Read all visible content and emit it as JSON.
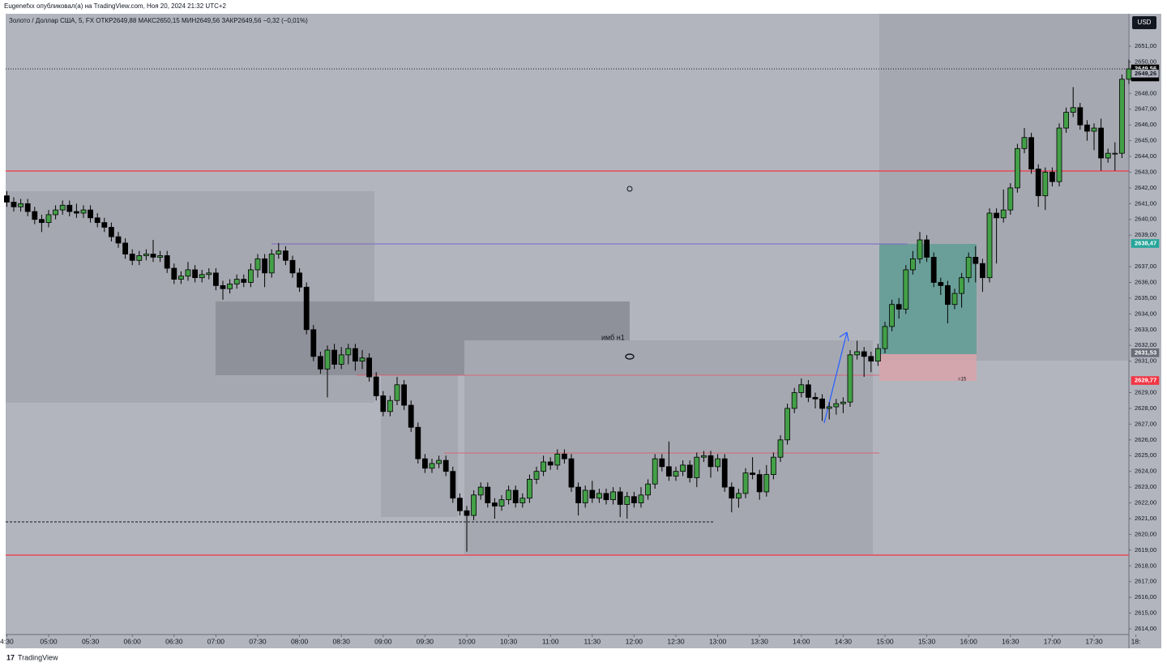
{
  "header": "Eugenefxx опубликовал(а) на TradingView.com, Ноя 20, 2024 21:32 UTC+2",
  "footer": "TradingView",
  "chart_data": {
    "type": "candlestick",
    "title": "Золото / Доллар США, 5, FX  ОТКР2649,88  МАКС2650,15  МИН2649,56  ЗАКР2649,56  −0,32 (−0,01%)",
    "currency": "USD",
    "annotations": [
      "имб н1",
      "=15"
    ],
    "countdown": "02:07",
    "up_color": "#43a047",
    "down_color": "#000000",
    "ylim": [
      2651.0,
      2614.0
    ],
    "open": [
      2641.5,
      2641.1,
      2640.8,
      2641.0,
      2640.5,
      2640.0,
      2639.8,
      2640.3,
      2640.6,
      2640.9,
      2640.5,
      2640.4,
      2640.6,
      2640.1,
      2639.8,
      2639.5,
      2638.9,
      2638.5,
      2637.8,
      2637.4,
      2637.7,
      2637.8,
      2637.6,
      2637.7,
      2636.9,
      2636.2,
      2636.4,
      2636.8,
      2636.3,
      2636.5,
      2636.6,
      2635.8,
      2635.6,
      2635.9,
      2636.2,
      2636.0,
      2636.8,
      2637.5,
      2636.6,
      2637.8,
      2638.0,
      2637.4,
      2636.6,
      2635.7,
      2633.0,
      2631.3,
      2630.5,
      2631.7,
      2630.8,
      2631.4,
      2631.8,
      2631.0,
      2631.2,
      2630.0,
      2628.8,
      2627.8,
      2628.5,
      2629.5,
      2628.2,
      2626.8,
      2624.8,
      2624.2,
      2624.5,
      2624.7,
      2624.0,
      2622.3,
      2621.5,
      2621.2,
      2622.5,
      2623.0,
      2622.0,
      2621.8,
      2622.2,
      2622.8,
      2622.0,
      2622.3,
      2623.5,
      2624.0,
      2624.6,
      2624.4,
      2625.1,
      2624.8,
      2623.0,
      2622.0,
      2622.8,
      2622.3,
      2622.6,
      2622.2,
      2622.7,
      2621.9,
      2622.4,
      2622.0,
      2622.5,
      2623.2,
      2624.8,
      2624.3,
      2623.7,
      2624.0,
      2624.4,
      2623.6,
      2624.9,
      2625.0,
      2624.3,
      2624.8,
      2623.0,
      2622.3,
      2622.6,
      2623.9,
      2623.8,
      2622.7,
      2623.8,
      2624.9,
      2626.0,
      2628.0,
      2629.0,
      2629.5,
      2628.7,
      2628.6,
      2628.0,
      2628.1,
      2628.3,
      2628.4,
      2631.4,
      2631.6,
      2631.3,
      2631.0,
      2631.8,
      2633.2,
      2634.6,
      2634.3,
      2636.8,
      2637.5,
      2638.7,
      2637.6,
      2636.0,
      2635.8,
      2634.6,
      2635.3,
      2636.3,
      2637.6,
      2637.2,
      2636.3,
      2640.4,
      2640.1,
      2640.6,
      2642.0,
      2644.5,
      2645.2,
      2643.2,
      2641.5,
      2643.0,
      2642.4,
      2645.8,
      2646.8,
      2647.1,
      2646.0,
      2645.6,
      2645.8,
      2643.9,
      2644.2,
      2644.2,
      2648.9
    ],
    "high": [
      2641.8,
      2641.4,
      2641.3,
      2641.3,
      2640.8,
      2640.3,
      2640.6,
      2640.9,
      2641.2,
      2641.2,
      2641.0,
      2640.9,
      2640.9,
      2640.4,
      2640.1,
      2639.8,
      2639.2,
      2638.8,
      2638.1,
      2638.0,
      2638.1,
      2638.7,
      2638.0,
      2638.0,
      2637.2,
      2636.7,
      2637.3,
      2637.1,
      2636.8,
      2636.9,
      2636.9,
      2636.1,
      2636.2,
      2636.5,
      2636.5,
      2637.2,
      2637.8,
      2637.8,
      2638.1,
      2638.5,
      2638.3,
      2637.7,
      2636.9,
      2636.0,
      2633.3,
      2631.6,
      2632.0,
      2632.1,
      2631.9,
      2632.1,
      2632.1,
      2631.7,
      2631.5,
      2630.3,
      2629.1,
      2628.8,
      2630.0,
      2629.8,
      2628.5,
      2627.1,
      2625.1,
      2624.8,
      2625.0,
      2625.0,
      2624.3,
      2622.6,
      2621.8,
      2622.8,
      2623.3,
      2623.3,
      2622.3,
      2622.5,
      2623.1,
      2623.1,
      2622.6,
      2623.8,
      2624.3,
      2625.0,
      2624.9,
      2625.4,
      2625.4,
      2625.1,
      2623.3,
      2623.1,
      2623.4,
      2622.9,
      2622.9,
      2623.0,
      2623.0,
      2622.7,
      2622.7,
      2623.0,
      2623.5,
      2625.1,
      2625.1,
      2625.9,
      2624.3,
      2624.7,
      2624.7,
      2625.2,
      2625.3,
      2625.3,
      2625.1,
      2625.1,
      2623.3,
      2622.9,
      2624.2,
      2624.9,
      2624.1,
      2624.4,
      2625.2,
      2626.3,
      2628.3,
      2629.3,
      2629.9,
      2629.8,
      2629.0,
      2628.9,
      2628.4,
      2628.6,
      2628.7,
      2631.7,
      2632.3,
      2631.9,
      2631.6,
      2632.1,
      2633.5,
      2634.9,
      2635.0,
      2637.1,
      2638.0,
      2639.2,
      2639.0,
      2637.9,
      2636.3,
      2636.1,
      2635.6,
      2636.6,
      2637.9,
      2638.3,
      2637.5,
      2640.7,
      2640.7,
      2641.9,
      2642.3,
      2644.8,
      2645.8,
      2645.5,
      2643.5,
      2643.3,
      2643.3,
      2646.1,
      2647.1,
      2648.4,
      2647.4,
      2646.3,
      2646.1,
      2646.4,
      2644.5,
      2644.9,
      2649.2,
      2650.15
    ],
    "low": [
      2640.8,
      2640.5,
      2640.5,
      2640.2,
      2639.7,
      2639.2,
      2639.5,
      2640.0,
      2640.3,
      2640.2,
      2640.1,
      2640.1,
      2639.8,
      2639.5,
      2639.2,
      2638.6,
      2638.2,
      2637.5,
      2637.1,
      2637.1,
      2637.4,
      2637.3,
      2637.3,
      2636.6,
      2635.9,
      2635.9,
      2636.1,
      2636.0,
      2636.0,
      2636.2,
      2635.5,
      2634.9,
      2635.3,
      2635.6,
      2635.7,
      2635.7,
      2636.3,
      2635.7,
      2636.3,
      2637.5,
      2637.1,
      2636.3,
      2635.4,
      2632.7,
      2631.0,
      2630.2,
      2628.7,
      2630.5,
      2630.5,
      2630.8,
      2630.4,
      2630.5,
      2629.7,
      2628.5,
      2627.5,
      2627.5,
      2628.2,
      2627.9,
      2626.5,
      2624.5,
      2623.9,
      2623.9,
      2624.2,
      2623.7,
      2622.0,
      2621.2,
      2618.9,
      2620.9,
      2622.2,
      2621.7,
      2621.0,
      2621.5,
      2621.9,
      2621.7,
      2621.7,
      2622.0,
      2623.2,
      2623.7,
      2624.1,
      2624.1,
      2624.5,
      2622.7,
      2621.2,
      2621.7,
      2622.0,
      2622.0,
      2621.9,
      2621.9,
      2621.1,
      2621.0,
      2621.7,
      2621.7,
      2622.2,
      2622.9,
      2624.0,
      2623.4,
      2623.4,
      2623.7,
      2623.3,
      2623.0,
      2624.6,
      2623.6,
      2624.0,
      2622.7,
      2621.4,
      2621.7,
      2622.3,
      2623.5,
      2622.2,
      2622.4,
      2623.5,
      2624.6,
      2625.7,
      2627.7,
      2628.7,
      2628.4,
      2628.0,
      2627.2,
      2627.3,
      2627.6,
      2627.7,
      2628.1,
      2631.1,
      2630.0,
      2630.3,
      2630.7,
      2631.5,
      2632.9,
      2633.7,
      2634.0,
      2636.5,
      2637.2,
      2637.3,
      2635.7,
      2635.2,
      2633.4,
      2634.3,
      2634.4,
      2636.0,
      2636.0,
      2635.4,
      2636.0,
      2637.2,
      2639.8,
      2640.3,
      2641.7,
      2644.2,
      2642.9,
      2640.8,
      2640.6,
      2642.1,
      2642.1,
      2645.5,
      2646.5,
      2645.7,
      2645.0,
      2644.4,
      2643.1,
      2643.6,
      2643.1,
      2643.9,
      2648.6
    ],
    "close": [
      2641.1,
      2640.8,
      2641.0,
      2640.5,
      2640.0,
      2639.8,
      2640.3,
      2640.6,
      2640.9,
      2640.5,
      2640.4,
      2640.6,
      2640.1,
      2639.8,
      2639.5,
      2638.9,
      2638.5,
      2637.8,
      2637.4,
      2637.7,
      2637.8,
      2637.6,
      2637.7,
      2636.9,
      2636.2,
      2636.4,
      2636.8,
      2636.3,
      2636.5,
      2636.6,
      2635.8,
      2635.6,
      2635.9,
      2636.2,
      2636.0,
      2636.8,
      2637.5,
      2636.6,
      2637.8,
      2638.0,
      2637.4,
      2636.6,
      2635.7,
      2633.0,
      2631.3,
      2630.5,
      2631.7,
      2630.8,
      2631.4,
      2631.8,
      2631.0,
      2631.2,
      2630.0,
      2628.8,
      2627.8,
      2628.5,
      2629.5,
      2628.2,
      2626.8,
      2624.8,
      2624.2,
      2624.5,
      2624.7,
      2624.0,
      2622.3,
      2621.5,
      2621.2,
      2622.5,
      2623.0,
      2622.0,
      2621.8,
      2622.2,
      2622.8,
      2622.0,
      2622.3,
      2623.5,
      2624.0,
      2624.6,
      2624.4,
      2625.1,
      2624.8,
      2623.0,
      2622.0,
      2622.8,
      2622.3,
      2622.6,
      2622.2,
      2622.7,
      2621.9,
      2622.4,
      2622.0,
      2622.5,
      2623.2,
      2624.8,
      2624.3,
      2623.7,
      2624.0,
      2624.4,
      2623.6,
      2624.9,
      2625.0,
      2624.3,
      2624.8,
      2623.0,
      2622.3,
      2622.6,
      2623.9,
      2623.8,
      2622.7,
      2623.8,
      2624.9,
      2626.0,
      2628.0,
      2629.0,
      2629.5,
      2628.7,
      2628.6,
      2628.0,
      2628.1,
      2628.3,
      2628.4,
      2631.4,
      2631.6,
      2631.3,
      2631.0,
      2631.8,
      2633.2,
      2634.6,
      2634.3,
      2636.8,
      2637.5,
      2638.7,
      2637.6,
      2636.0,
      2635.8,
      2634.6,
      2635.3,
      2636.3,
      2637.6,
      2637.2,
      2636.3,
      2640.4,
      2640.1,
      2640.6,
      2642.0,
      2644.5,
      2645.2,
      2643.2,
      2641.5,
      2643.0,
      2642.4,
      2645.8,
      2646.8,
      2647.1,
      2646.0,
      2645.6,
      2645.8,
      2643.9,
      2644.2,
      2644.2,
      2648.9,
      2649.56
    ],
    "xticks": [
      {
        "value": 0,
        "label": "4:30"
      },
      {
        "value": 6,
        "label": "05:00"
      },
      {
        "value": 12,
        "label": "05:30"
      },
      {
        "value": 18,
        "label": "06:00"
      },
      {
        "value": 24,
        "label": "06:30"
      },
      {
        "value": 30,
        "label": "07:00"
      },
      {
        "value": 36,
        "label": "07:30"
      },
      {
        "value": 42,
        "label": "08:00"
      },
      {
        "value": 48,
        "label": "08:30"
      },
      {
        "value": 54,
        "label": "09:00"
      },
      {
        "value": 60,
        "label": "09:30"
      },
      {
        "value": 66,
        "label": "10:00"
      },
      {
        "value": 72,
        "label": "10:30"
      },
      {
        "value": 78,
        "label": "11:00"
      },
      {
        "value": 84,
        "label": "11:30"
      },
      {
        "value": 90,
        "label": "12:00"
      },
      {
        "value": 96,
        "label": "12:30"
      },
      {
        "value": 102,
        "label": "13:00"
      },
      {
        "value": 108,
        "label": "13:30"
      },
      {
        "value": 114,
        "label": "14:00"
      },
      {
        "value": 120,
        "label": "14:30"
      },
      {
        "value": 126,
        "label": "15:00"
      },
      {
        "value": 132,
        "label": "15:30"
      },
      {
        "value": 138,
        "label": "16:00"
      },
      {
        "value": 144,
        "label": "16:30"
      },
      {
        "value": 150,
        "label": "17:00"
      },
      {
        "value": 156,
        "label": "17:30"
      },
      {
        "value": 162,
        "label": "18:"
      }
    ],
    "yticks": [
      {
        "value": 2651,
        "label": "2651,00"
      },
      {
        "value": 2650,
        "label": "2650,00"
      },
      {
        "value": 2648,
        "label": "2648,00"
      },
      {
        "value": 2647,
        "label": "2647,00"
      },
      {
        "value": 2646,
        "label": "2646,00"
      },
      {
        "value": 2645,
        "label": "2645,00"
      },
      {
        "value": 2644,
        "label": "2644,00"
      },
      {
        "value": 2643,
        "label": "2643,00"
      },
      {
        "value": 2642,
        "label": "2642,00"
      },
      {
        "value": 2641,
        "label": "2641,00"
      },
      {
        "value": 2640,
        "label": "2640,00"
      },
      {
        "value": 2639,
        "label": "2639,00"
      },
      {
        "value": 2637,
        "label": "2637,00"
      },
      {
        "value": 2636,
        "label": "2636,00"
      },
      {
        "value": 2635,
        "label": "2635,00"
      },
      {
        "value": 2634,
        "label": "2634,00"
      },
      {
        "value": 2633,
        "label": "2633,00"
      },
      {
        "value": 2632,
        "label": "2632,00"
      },
      {
        "value": 2631,
        "label": "2631,00"
      },
      {
        "value": 2629,
        "label": "2629,00"
      },
      {
        "value": 2628,
        "label": "2628,00"
      },
      {
        "value": 2627,
        "label": "2627,00"
      },
      {
        "value": 2626,
        "label": "2626,00"
      },
      {
        "value": 2625,
        "label": "2625,00"
      },
      {
        "value": 2624,
        "label": "2624,00"
      },
      {
        "value": 2623,
        "label": "2623,00"
      },
      {
        "value": 2622,
        "label": "2622,00"
      },
      {
        "value": 2621,
        "label": "2621,00"
      },
      {
        "value": 2620,
        "label": "2620,00"
      },
      {
        "value": 2619,
        "label": "2619,00"
      },
      {
        "value": 2618,
        "label": "2618,00"
      },
      {
        "value": 2617,
        "label": "2617,00"
      },
      {
        "value": 2616,
        "label": "2616,00"
      },
      {
        "value": 2615,
        "label": "2615,00"
      },
      {
        "value": 2614,
        "label": "2614,00"
      }
    ],
    "price_labels": [
      {
        "value": 2649.56,
        "label": "2649,56",
        "color": "#000000"
      },
      {
        "value": 2649.26,
        "label": "2649,26",
        "color": "#b2b5be"
      },
      {
        "value": 2638.47,
        "label": "2638,47",
        "color": "#26a69a"
      },
      {
        "value": 2631.53,
        "label": "2631,53",
        "color": "#6a6d78"
      },
      {
        "value": 2629.77,
        "label": "2629,77",
        "color": "#f23645"
      }
    ]
  }
}
